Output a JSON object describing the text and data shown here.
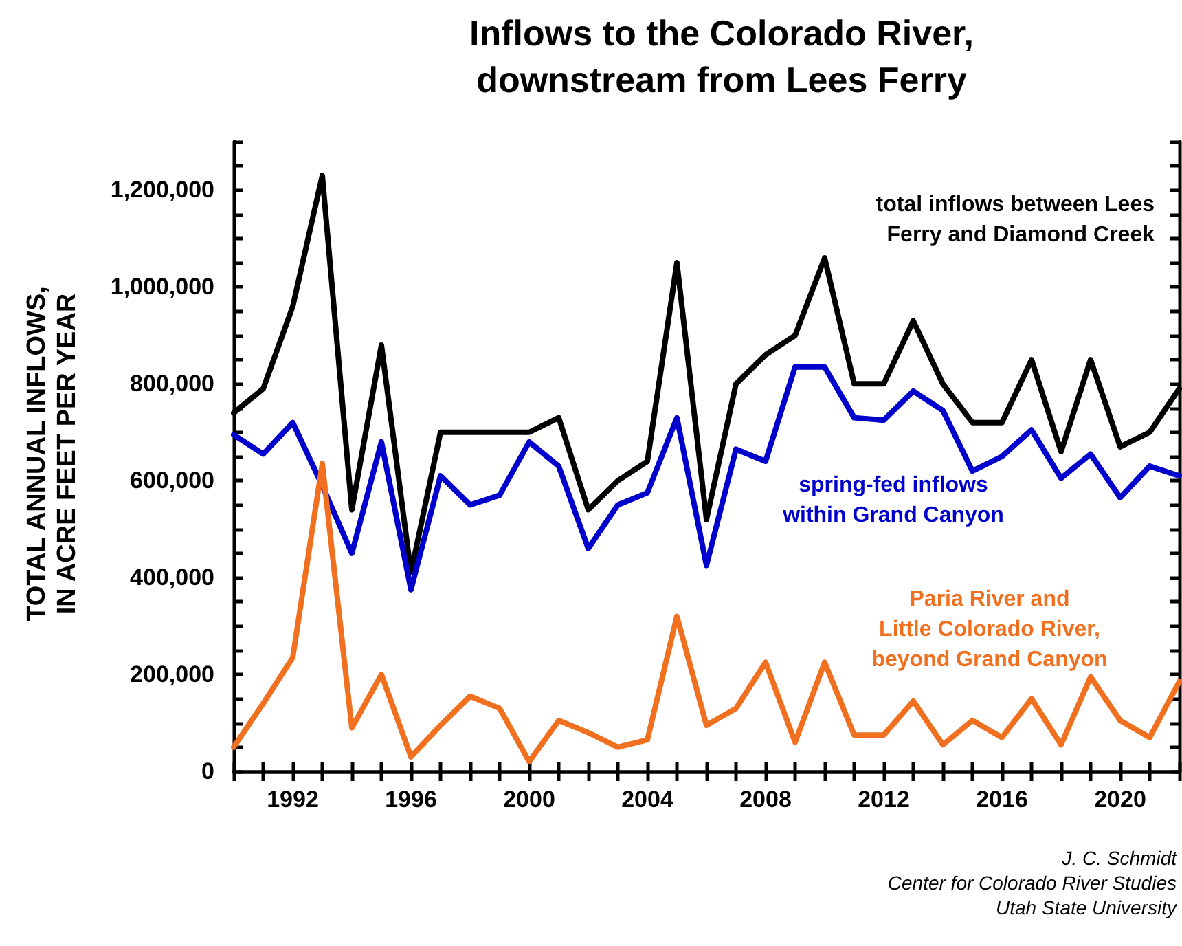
{
  "chart_data": {
    "type": "line",
    "title": "Inflows to the Colorado River,\ndownstream from Lees Ferry",
    "ylabel": "TOTAL ANNUAL INFLOWS,\nIN ACRE FEET PER YEAR",
    "x": [
      1990,
      1991,
      1992,
      1993,
      1994,
      1995,
      1996,
      1997,
      1998,
      1999,
      2000,
      2001,
      2002,
      2003,
      2004,
      2005,
      2006,
      2007,
      2008,
      2009,
      2010,
      2011,
      2012,
      2013,
      2014,
      2015,
      2016,
      2017,
      2018,
      2019,
      2020,
      2021,
      2022
    ],
    "series": [
      {
        "name": "total inflows between Lees\nFerry and Diamond Creek",
        "color": "#000000",
        "values": [
          740000,
          790000,
          960000,
          1230000,
          540000,
          880000,
          410000,
          700000,
          700000,
          700000,
          700000,
          730000,
          540000,
          600000,
          640000,
          1050000,
          520000,
          800000,
          860000,
          900000,
          1060000,
          800000,
          800000,
          930000,
          800000,
          720000,
          720000,
          850000,
          660000,
          850000,
          670000,
          700000,
          790000
        ]
      },
      {
        "name": "spring-fed inflows\nwithin Grand Canyon",
        "color": "#0000cc",
        "values": [
          695000,
          655000,
          720000,
          590000,
          450000,
          680000,
          375000,
          610000,
          550000,
          570000,
          680000,
          630000,
          460000,
          550000,
          575000,
          730000,
          425000,
          665000,
          640000,
          835000,
          835000,
          730000,
          725000,
          785000,
          745000,
          620000,
          650000,
          705000,
          605000,
          655000,
          565000,
          630000,
          610000
        ]
      },
      {
        "name": "Paria River and\nLittle Colorado River,\nbeyond Grand Canyon",
        "color": "#f07020",
        "values": [
          50000,
          140000,
          235000,
          635000,
          90000,
          200000,
          30000,
          95000,
          155000,
          130000,
          20000,
          105000,
          80000,
          50000,
          65000,
          320000,
          95000,
          130000,
          225000,
          60000,
          225000,
          75000,
          75000,
          145000,
          55000,
          105000,
          70000,
          150000,
          55000,
          195000,
          105000,
          70000,
          185000
        ]
      }
    ],
    "xlim": [
      1990,
      2022
    ],
    "xticks": [
      {
        "value": 1990,
        "label": null
      },
      {
        "value": 1991,
        "label": null
      },
      1992,
      {
        "value": 1993,
        "label": null
      },
      {
        "value": 1994,
        "label": null
      },
      {
        "value": 1995,
        "label": null
      },
      1996,
      {
        "value": 1997,
        "label": null
      },
      {
        "value": 1998,
        "label": null
      },
      {
        "value": 1999,
        "label": null
      },
      2000,
      {
        "value": 2001,
        "label": null
      },
      {
        "value": 2002,
        "label": null
      },
      {
        "value": 2003,
        "label": null
      },
      2004,
      {
        "value": 2005,
        "label": null
      },
      {
        "value": 2006,
        "label": null
      },
      {
        "value": 2007,
        "label": null
      },
      2008,
      {
        "value": 2009,
        "label": null
      },
      {
        "value": 2010,
        "label": null
      },
      {
        "value": 2011,
        "label": null
      },
      2012,
      {
        "value": 2013,
        "label": null
      },
      {
        "value": 2014,
        "label": null
      },
      {
        "value": 2015,
        "label": null
      },
      2016,
      {
        "value": 2017,
        "label": null
      },
      {
        "value": 2018,
        "label": null
      },
      {
        "value": 2019,
        "label": null
      },
      2020,
      {
        "value": 2021,
        "label": null
      },
      {
        "value": 2022,
        "label": null
      }
    ],
    "ylim": [
      0,
      1300000
    ],
    "yticks": [
      0,
      {
        "value": 50000,
        "label": null
      },
      {
        "value": 100000,
        "label": null
      },
      {
        "value": 150000,
        "label": null
      },
      {
        "value": 200000,
        "label": "200,000"
      },
      {
        "value": 250000,
        "label": null
      },
      {
        "value": 300000,
        "label": null
      },
      {
        "value": 350000,
        "label": null
      },
      {
        "value": 400000,
        "label": "400,000"
      },
      {
        "value": 450000,
        "label": null
      },
      {
        "value": 500000,
        "label": null
      },
      {
        "value": 550000,
        "label": null
      },
      {
        "value": 600000,
        "label": "600,000"
      },
      {
        "value": 650000,
        "label": null
      },
      {
        "value": 700000,
        "label": null
      },
      {
        "value": 750000,
        "label": null
      },
      {
        "value": 800000,
        "label": "800,000"
      },
      {
        "value": 850000,
        "label": null
      },
      {
        "value": 900000,
        "label": null
      },
      {
        "value": 950000,
        "label": null
      },
      {
        "value": 1000000,
        "label": "1,000,000"
      },
      {
        "value": 1050000,
        "label": null
      },
      {
        "value": 1100000,
        "label": null
      },
      {
        "value": 1150000,
        "label": null
      },
      {
        "value": 1200000,
        "label": "1,200,000"
      },
      {
        "value": 1250000,
        "label": null
      },
      {
        "value": 1300000,
        "label": null
      }
    ],
    "grid": false,
    "legend": "top right",
    "marker": "none",
    "line_style": "solid",
    "annotations": [
      "J. C. Schmidt\nCenter for Colorado River Studies\nUtah State University"
    ]
  }
}
